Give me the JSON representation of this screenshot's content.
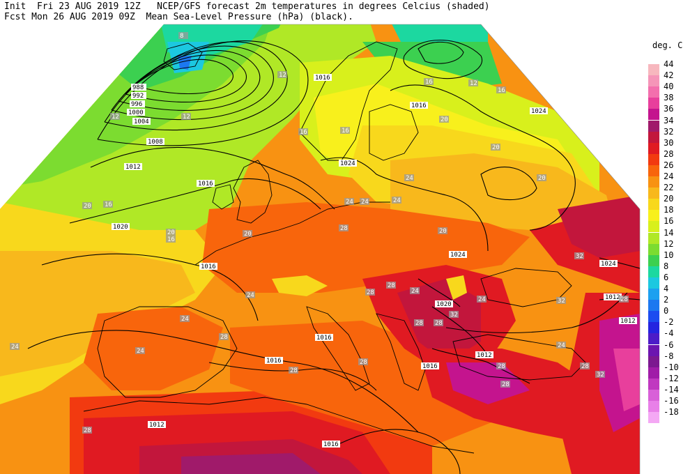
{
  "header": {
    "line1": "Init  Fri 23 AUG 2019 12Z   NCEP/GFS forecast 2m temperatures in degrees Celcius (shaded)",
    "line2": "Fcst Mon 26 AUG 2019 09Z  Mean Sea-Level Pressure (hPa) (black)."
  },
  "legend": {
    "title": "deg. C",
    "items": [
      {
        "label": "44",
        "color": "#f7b7be"
      },
      {
        "label": "42",
        "color": "#f595b8"
      },
      {
        "label": "40",
        "color": "#f36fad"
      },
      {
        "label": "38",
        "color": "#e83f9c"
      },
      {
        "label": "36",
        "color": "#c4148e"
      },
      {
        "label": "34",
        "color": "#a01a6a"
      },
      {
        "label": "32",
        "color": "#c2163c"
      },
      {
        "label": "30",
        "color": "#e01a22"
      },
      {
        "label": "28",
        "color": "#f23a10"
      },
      {
        "label": "26",
        "color": "#f8650c"
      },
      {
        "label": "24",
        "color": "#f89212"
      },
      {
        "label": "22",
        "color": "#f8b81c"
      },
      {
        "label": "20",
        "color": "#f8d81c"
      },
      {
        "label": "18",
        "color": "#f8f01c"
      },
      {
        "label": "16",
        "color": "#d8f01c"
      },
      {
        "label": "14",
        "color": "#b0e826"
      },
      {
        "label": "12",
        "color": "#7cdc30"
      },
      {
        "label": "10",
        "color": "#3cd050"
      },
      {
        "label": "8",
        "color": "#1cd8a0"
      },
      {
        "label": "6",
        "color": "#1cc8e0"
      },
      {
        "label": "4",
        "color": "#1ca0f0"
      },
      {
        "label": "2",
        "color": "#1c78f0"
      },
      {
        "label": "0",
        "color": "#1c4cf0"
      },
      {
        "label": "-2",
        "color": "#2424e0"
      },
      {
        "label": "-4",
        "color": "#4c1cc8"
      },
      {
        "label": "-6",
        "color": "#6c14b0"
      },
      {
        "label": "-8",
        "color": "#7c1890"
      },
      {
        "label": "-10",
        "color": "#a01ca8"
      },
      {
        "label": "-12",
        "color": "#c038c0"
      },
      {
        "label": "-14",
        "color": "#d860d8"
      },
      {
        "label": "-16",
        "color": "#e880e8"
      },
      {
        "label": "-18",
        "color": "#f4a8f4"
      }
    ]
  },
  "isobar_labels": [
    "988",
    "992",
    "996",
    "1000",
    "1004",
    "1008",
    "1012",
    "1016",
    "1020",
    "1024"
  ],
  "map_isobar_text": {
    "a": "988",
    "b": "992",
    "c": "996",
    "d": "1000",
    "e": "1004",
    "f": "1008",
    "g": "1012",
    "h": "1016",
    "i": "1020",
    "j": "1024",
    "k": "1016",
    "l": "1016",
    "m": "1020",
    "n": "1024",
    "o": "1016",
    "p": "1024",
    "q": "1016",
    "r": "1016",
    "s": "1012",
    "t": "1012",
    "u": "1016",
    "v": "1012",
    "w": "1016",
    "x": "1024",
    "y": "1020",
    "z": "1012"
  },
  "map_temp_text": [
    "8",
    "12",
    "12",
    "16",
    "12",
    "16",
    "20",
    "16",
    "16",
    "12",
    "16",
    "20",
    "20",
    "24",
    "20",
    "20",
    "24",
    "24",
    "28",
    "24",
    "28",
    "24",
    "28",
    "28",
    "28",
    "28",
    "32",
    "24",
    "24",
    "24",
    "28",
    "28",
    "28",
    "24",
    "28",
    "32",
    "28",
    "32",
    "28",
    "32",
    "28",
    "24",
    "20",
    "24",
    "16",
    "20"
  ]
}
